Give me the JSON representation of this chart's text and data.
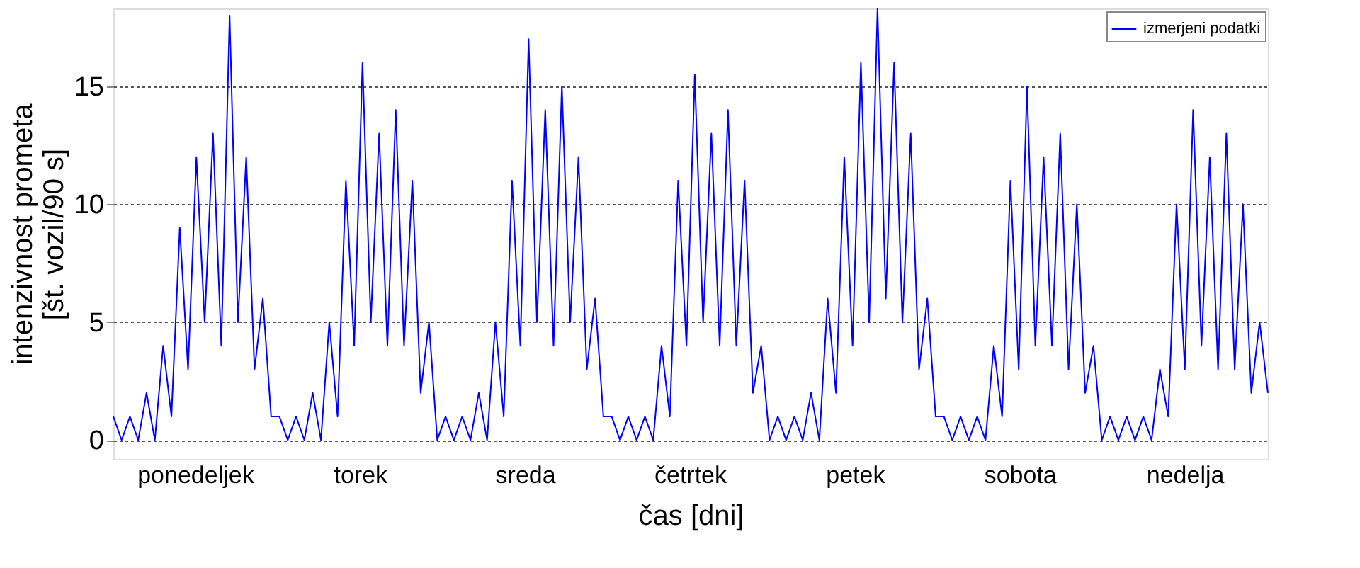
{
  "chart_data": {
    "type": "line",
    "xlabel": "čas [dni]",
    "ylabel": "intenzivnost prometa\n[št. vozil/90 s]",
    "annotations": [
      "ponedeljek",
      "torek",
      "sreda",
      "četrtek",
      "petek",
      "sobota",
      "nedelja"
    ],
    "ylim": [
      -0.8,
      18.3
    ],
    "yticks": [
      0,
      5,
      10,
      15
    ],
    "grid": "y",
    "legend": "top right",
    "line_style": "solid",
    "tick_labels": "y",
    "categories": [
      null,
      null,
      null,
      null,
      null,
      null,
      null,
      null,
      null,
      null,
      null,
      null,
      null,
      null,
      null,
      null,
      null,
      null,
      null,
      null,
      null,
      null,
      null,
      null,
      null,
      null,
      null,
      null,
      null,
      null,
      null,
      null,
      null,
      null,
      null,
      null,
      null,
      null,
      null,
      null,
      null,
      null,
      null,
      null,
      null,
      null,
      null,
      null,
      null,
      null,
      null,
      null,
      null,
      null,
      null,
      null,
      null,
      null,
      null,
      null,
      null,
      null,
      null,
      null,
      null,
      null,
      null,
      null,
      null,
      null,
      null,
      null,
      null,
      null,
      null,
      null,
      null,
      null,
      null,
      null,
      null,
      null,
      null,
      null,
      null,
      null,
      null,
      null,
      null,
      null,
      null,
      null,
      null,
      null,
      null,
      null,
      null,
      null,
      null,
      null,
      null,
      null,
      null,
      null,
      null,
      null,
      null,
      null,
      null,
      null,
      null,
      null,
      null,
      null,
      null,
      null,
      null,
      null,
      null,
      null,
      null,
      null,
      null,
      null,
      null,
      null,
      null,
      null,
      null,
      null,
      null,
      null,
      null,
      null,
      null,
      null,
      null,
      null,
      null,
      null
    ],
    "series": [
      {
        "name": "izmerjeni podatki",
        "color": "#0000ff",
        "values": [
          1,
          0,
          1,
          0,
          2,
          0,
          4,
          1,
          9,
          3,
          12,
          5,
          13,
          4,
          18,
          5,
          12,
          3,
          6,
          1,
          1,
          0,
          1,
          0,
          2,
          0,
          5,
          1,
          11,
          4,
          16,
          5,
          13,
          4,
          14,
          4,
          11,
          2,
          5,
          0,
          1,
          0,
          1,
          0,
          2,
          0,
          5,
          1,
          11,
          4,
          17,
          5,
          14,
          4,
          15,
          5,
          12,
          3,
          6,
          1,
          1,
          0,
          1,
          0,
          1,
          0,
          4,
          1,
          11,
          4,
          15.5,
          5,
          13,
          4,
          14,
          4,
          11,
          2,
          4,
          0,
          1,
          0,
          1,
          0,
          2,
          0,
          6,
          2,
          12,
          4,
          16,
          5,
          18.3,
          6,
          16,
          5,
          13,
          3,
          6,
          1,
          1,
          0,
          1,
          0,
          1,
          0,
          4,
          1,
          11,
          3,
          15,
          4,
          12,
          4,
          13,
          3,
          10,
          2,
          4,
          0,
          1,
          0,
          1,
          0,
          1,
          0,
          3,
          1,
          10,
          3,
          14,
          4,
          12,
          3,
          13,
          3,
          10,
          2,
          5,
          2
        ]
      }
    ]
  }
}
